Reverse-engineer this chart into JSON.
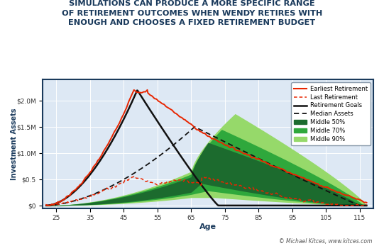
{
  "title": "SIMULATIONS CAN PRODUCE A MORE SPECIFIC RANGE\nOF RETIREMENT OUTCOMES WHEN WENDY RETIRES WITH\nENOUGH AND CHOOSES A FIXED RETIREMENT BUDGET",
  "xlabel": "Age",
  "ylabel": "Investment Assets",
  "xlim": [
    21,
    119
  ],
  "ylim": [
    -0.05,
    2.4
  ],
  "xticks": [
    25,
    35,
    45,
    55,
    65,
    75,
    85,
    95,
    105,
    115
  ],
  "ytick_vals": [
    0,
    0.5,
    1.0,
    1.5,
    2.0
  ],
  "ytick_labels": [
    "$0",
    "$0.5",
    "$1.0M",
    "$1.5M",
    "$2.0M"
  ],
  "background_color": "#dde8f4",
  "outer_background": "#ffffff",
  "border_color": "#1a3a5c",
  "title_color": "#1a3a5c",
  "axis_label_color": "#1a3a5c",
  "tick_color": "#333333",
  "colors": {
    "earliest": "#e82500",
    "last": "#e82500",
    "goals": "#111111",
    "median": "#111111",
    "band50": "#1c6b2e",
    "band70": "#2fa83c",
    "band90": "#96d96a"
  },
  "figsize": [
    5.41,
    3.47
  ],
  "dpi": 100
}
